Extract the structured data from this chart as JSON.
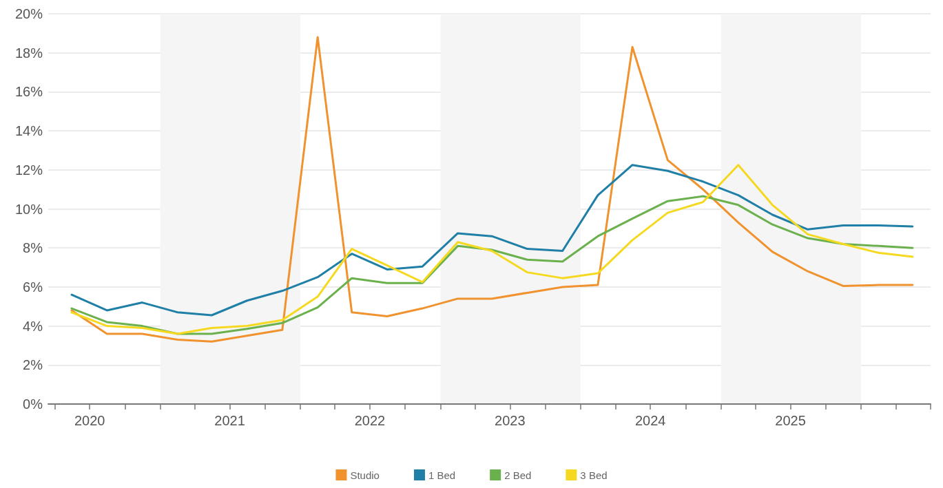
{
  "chart_data": {
    "type": "line",
    "x": [
      "2020-05-15",
      "2020-08-15",
      "2020-11-15",
      "2021-02-15",
      "2021-05-15",
      "2021-08-15",
      "2021-11-15",
      "2022-02-15",
      "2022-05-15",
      "2022-08-15",
      "2022-11-15",
      "2023-02-15",
      "2023-05-15",
      "2023-08-15",
      "2023-11-15",
      "2024-02-15",
      "2024-05-15",
      "2024-08-15",
      "2024-11-15",
      "2025-02-15",
      "2025-05-15",
      "2025-08-15",
      "2025-11-15",
      "2026-02-15",
      "2026-05-15"
    ],
    "series": [
      {
        "name": "Studio",
        "color": "#f0922d",
        "values": [
          4.8,
          3.6,
          3.6,
          3.3,
          3.2,
          3.5,
          3.8,
          18.8,
          4.7,
          4.5,
          4.9,
          5.4,
          5.4,
          5.7,
          6.0,
          6.1,
          18.3,
          12.5,
          11.0,
          9.3,
          7.8,
          6.8,
          6.05,
          6.1,
          6.1
        ]
      },
      {
        "name": "1 Bed",
        "color": "#1f7fa6",
        "values": [
          5.6,
          4.8,
          5.2,
          4.7,
          4.55,
          5.3,
          5.8,
          6.5,
          7.7,
          6.9,
          7.05,
          8.75,
          8.6,
          7.95,
          7.85,
          10.7,
          12.25,
          11.95,
          11.4,
          10.7,
          9.7,
          8.95,
          9.15,
          9.15,
          9.1
        ]
      },
      {
        "name": "2 Bed",
        "color": "#6ab04c",
        "values": [
          4.9,
          4.2,
          4.0,
          3.6,
          3.6,
          3.85,
          4.15,
          4.95,
          6.45,
          6.2,
          6.2,
          8.1,
          7.9,
          7.4,
          7.3,
          8.6,
          9.5,
          10.4,
          10.65,
          10.2,
          9.2,
          8.5,
          8.2,
          8.1,
          8.0
        ]
      },
      {
        "name": "3 Bed",
        "color": "#f5d921",
        "values": [
          4.7,
          4.0,
          3.9,
          3.6,
          3.9,
          4.0,
          4.3,
          5.5,
          7.95,
          7.1,
          6.25,
          8.3,
          7.85,
          6.75,
          6.45,
          6.7,
          8.4,
          9.8,
          10.35,
          12.25,
          10.2,
          8.7,
          8.2,
          7.75,
          7.55
        ]
      }
    ],
    "xlim": [
      "2020-03-15",
      "2026-07-01"
    ],
    "xticks": [
      {
        "value": "2020-04-01",
        "label": null
      },
      {
        "value": "2020-07-01",
        "label": "2020"
      },
      {
        "value": "2020-10-01",
        "label": null
      },
      {
        "value": "2021-01-01",
        "label": null
      },
      {
        "value": "2021-04-01",
        "label": null
      },
      {
        "value": "2021-07-01",
        "label": "2021"
      },
      {
        "value": "2021-10-01",
        "label": null
      },
      {
        "value": "2022-01-01",
        "label": null
      },
      {
        "value": "2022-04-01",
        "label": null
      },
      {
        "value": "2022-07-01",
        "label": "2022"
      },
      {
        "value": "2022-10-01",
        "label": null
      },
      {
        "value": "2023-01-01",
        "label": null
      },
      {
        "value": "2023-04-01",
        "label": null
      },
      {
        "value": "2023-07-01",
        "label": "2023"
      },
      {
        "value": "2023-10-01",
        "label": null
      },
      {
        "value": "2024-01-01",
        "label": null
      },
      {
        "value": "2024-04-01",
        "label": null
      },
      {
        "value": "2024-07-01",
        "label": "2024"
      },
      {
        "value": "2024-10-01",
        "label": null
      },
      {
        "value": "2025-01-01",
        "label": null
      },
      {
        "value": "2025-04-01",
        "label": null
      },
      {
        "value": "2025-07-01",
        "label": "2025"
      },
      {
        "value": "2025-10-01",
        "label": null
      },
      {
        "value": "2026-01-01",
        "label": null
      },
      {
        "value": "2026-04-01",
        "label": null
      },
      {
        "value": "2026-07-01",
        "label": null
      }
    ],
    "ylim": [
      0,
      20
    ],
    "yticks": [
      {
        "value": 0,
        "label": "0%"
      },
      {
        "value": 2,
        "label": "2%"
      },
      {
        "value": 4,
        "label": "4%"
      },
      {
        "value": 6,
        "label": "6%"
      },
      {
        "value": 8,
        "label": "8%"
      },
      {
        "value": 10,
        "label": "10%"
      },
      {
        "value": 12,
        "label": "12%"
      },
      {
        "value": 14,
        "label": "14%"
      },
      {
        "value": 16,
        "label": "16%"
      },
      {
        "value": 18,
        "label": "18%"
      },
      {
        "value": 20,
        "label": "20%"
      }
    ],
    "bands": [
      {
        "axis": "x",
        "from": "2021-01-01",
        "to": "2022-01-01",
        "color": "#f5f5f5"
      },
      {
        "axis": "x",
        "from": "2023-01-01",
        "to": "2024-01-01",
        "color": "#f5f5f5"
      },
      {
        "axis": "x",
        "from": "2025-01-01",
        "to": "2026-01-01",
        "color": "#f5f5f5"
      }
    ],
    "grid": "y",
    "legend": "bottom",
    "marker": "none",
    "line_style": "solid"
  }
}
